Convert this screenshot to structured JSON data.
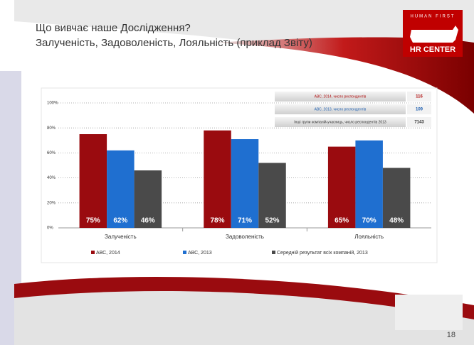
{
  "slide": {
    "heading": "Що вивчає наше Дослідження?",
    "subheading": "Залученість, Задоволеність, Лояльність (приклад Звіту)",
    "logo_top": "HUMAN FIRST",
    "logo_bottom": "HR CENTER",
    "page_number": "18"
  },
  "chart_data": {
    "type": "bar",
    "categories": [
      "Залученість",
      "Задоволеність",
      "Лояльність"
    ],
    "series": [
      {
        "name": "АВС, 2014",
        "color": "#9a0b0f",
        "values": [
          75,
          78,
          65
        ],
        "value_labels": [
          "75%",
          "78%",
          "65%"
        ]
      },
      {
        "name": "АВС, 2013",
        "color": "#1f6fd0",
        "values": [
          62,
          71,
          70
        ],
        "value_labels": [
          "62%",
          "71%",
          "70%"
        ]
      },
      {
        "name": "Середній результат всіх компаній, 2013",
        "color": "#4a4a4a",
        "values": [
          46,
          52,
          48
        ],
        "value_labels": [
          "46%",
          "52%",
          "48%"
        ]
      }
    ],
    "ylim": [
      0,
      100
    ],
    "yticks": [
      {
        "value": 0,
        "label": "0%"
      },
      {
        "value": 20,
        "label": "20%"
      },
      {
        "value": 40,
        "label": "40%"
      },
      {
        "value": 60,
        "label": "60%"
      },
      {
        "value": 80,
        "label": "80%"
      },
      {
        "value": 100,
        "label": "100%"
      }
    ],
    "grid": true,
    "legend": "bottom",
    "respondents": [
      {
        "label": "АВС, 2014, число респондентів",
        "count": "116",
        "color": "#b01010"
      },
      {
        "label": "АВС, 2013, число респондентів",
        "count": "109",
        "color": "#1f5fb0"
      },
      {
        "label": "Інші групи компаній-учасниць, число респондентів 2013",
        "count": "7143",
        "color": "#333333"
      }
    ]
  }
}
